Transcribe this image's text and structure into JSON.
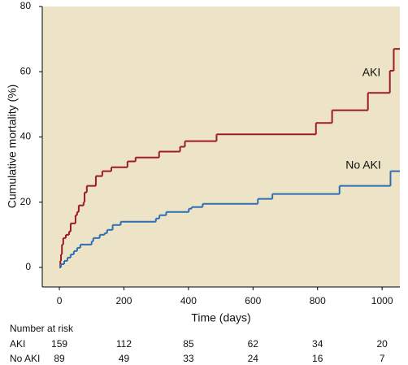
{
  "chart_data": {
    "type": "step",
    "xlabel": "Time (days)",
    "ylabel": "Cumulative mortality (%)",
    "xlim": [
      -53,
      1055
    ],
    "ylim": [
      -6,
      80
    ],
    "xticks": [
      0,
      200,
      400,
      600,
      800,
      1000
    ],
    "yticks": [
      0,
      20,
      40,
      60,
      80
    ],
    "background": "#ede4c8",
    "series": [
      {
        "name": "AKI",
        "color": "#9e1b22",
        "x": [
          0,
          3,
          5,
          8,
          12,
          20,
          30,
          35,
          50,
          55,
          60,
          75,
          78,
          85,
          113,
          133,
          161,
          211,
          236,
          309,
          374,
          389,
          487,
          795,
          845,
          956,
          1024,
          1036
        ],
        "values": [
          0,
          2,
          4,
          7,
          9,
          10,
          11,
          13.5,
          16,
          17,
          19,
          20,
          23,
          25,
          28,
          29.5,
          30.7,
          32.5,
          33.7,
          35.5,
          37,
          38.7,
          40.8,
          44.3,
          48.2,
          53.5,
          60.3,
          67
        ]
      },
      {
        "name": "No AKI",
        "color": "#2f6db3",
        "x": [
          0,
          5,
          15,
          25,
          35,
          45,
          55,
          65,
          100,
          105,
          125,
          140,
          148,
          165,
          190,
          299,
          310,
          331,
          401,
          410,
          444,
          615,
          660,
          868,
          1026
        ],
        "values": [
          0,
          1,
          2,
          3,
          4,
          5,
          6,
          7,
          8,
          9,
          10,
          10.5,
          11.5,
          13,
          14,
          15,
          16,
          17,
          18,
          18.5,
          19.5,
          21,
          22.5,
          25,
          29.5
        ]
      }
    ],
    "risk_table": {
      "title": "Number at risk",
      "rows": [
        {
          "name": "AKI",
          "values": [
            159,
            112,
            85,
            62,
            34,
            20
          ]
        },
        {
          "name": "No AKI",
          "values": [
            89,
            49,
            33,
            24,
            16,
            7
          ]
        }
      ]
    }
  }
}
